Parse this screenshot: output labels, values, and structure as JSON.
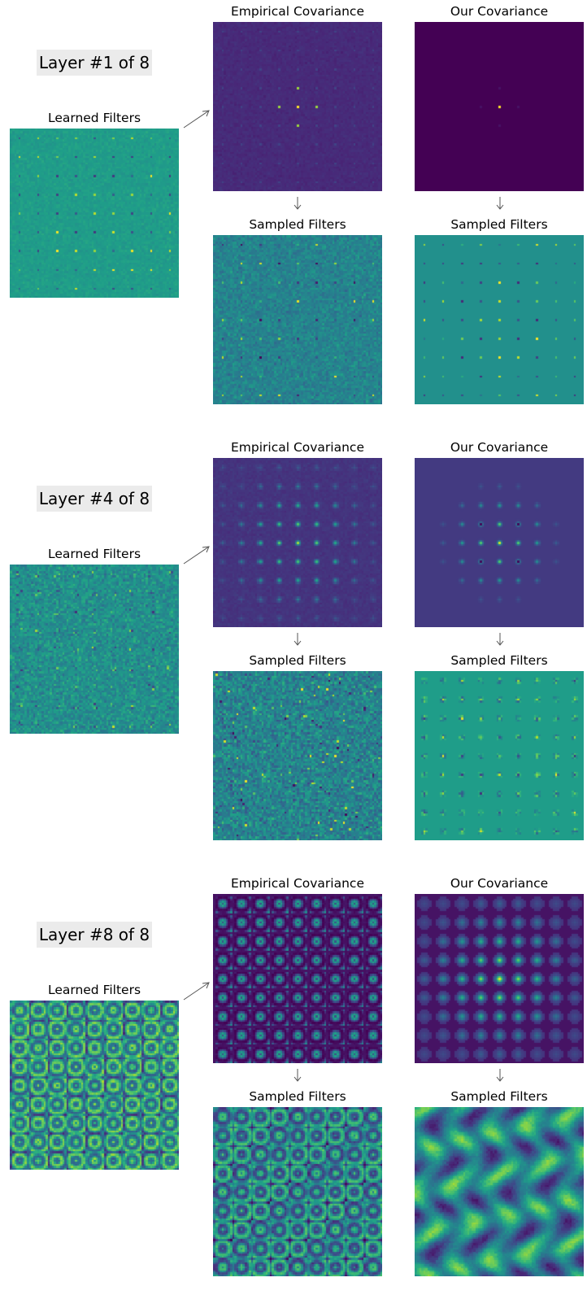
{
  "sections": [
    {
      "layer_label": "Layer #1 of 8",
      "learned_title": "Learned Filters",
      "empirical_title": "Empirical Covariance",
      "ours_title": "Our Covariance",
      "empirical_sampled_title": "Sampled Filters",
      "ours_sampled_title": "Sampled Filters"
    },
    {
      "layer_label": "Layer #4 of 8",
      "learned_title": "Learned Filters",
      "empirical_title": "Empirical Covariance",
      "ours_title": "Our Covariance",
      "empirical_sampled_title": "Sampled Filters",
      "ours_sampled_title": "Sampled Filters"
    },
    {
      "layer_label": "Layer #8 of 8",
      "learned_title": "Learned Filters",
      "empirical_title": "Empirical Covariance",
      "ours_title": "Our Covariance",
      "empirical_sampled_title": "Sampled Filters",
      "ours_sampled_title": "Sampled Filters"
    }
  ],
  "colormap": "viridis",
  "colors": {
    "viridis_dark": "#440154",
    "viridis_mid": "#21918c",
    "viridis_bright": "#fde725",
    "arrow": "#555555",
    "label_box": "#ebebeb"
  }
}
